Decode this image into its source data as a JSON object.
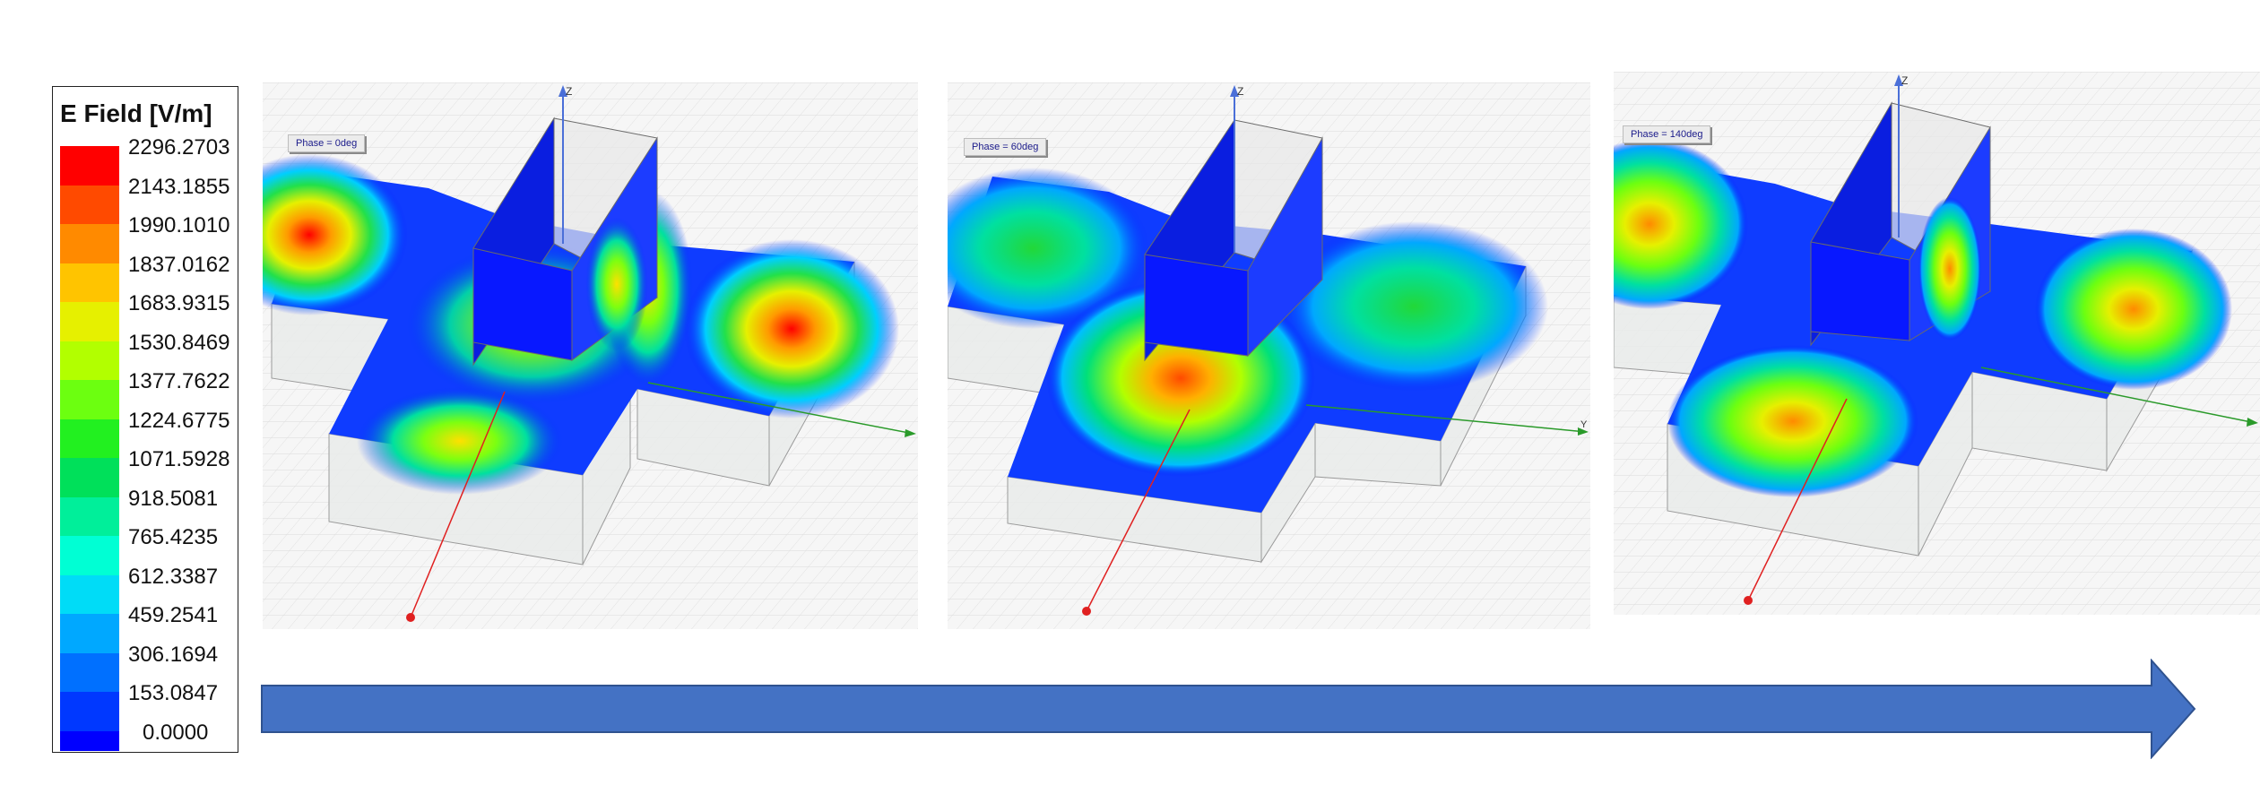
{
  "legend": {
    "title": "E Field [V/m]",
    "values": [
      "2296.2703",
      "2143.1855",
      "1990.1010",
      "1837.0162",
      "1683.9315",
      "1530.8469",
      "1377.7622",
      "1224.6775",
      "1071.5928",
      "918.5081",
      "765.4235",
      "612.3387",
      "459.2541",
      "306.1694",
      "153.0847",
      "0.0000"
    ],
    "colors": [
      "#ff0000",
      "#ff4a00",
      "#ff8a00",
      "#ffc400",
      "#e6f000",
      "#b2ff00",
      "#6cff10",
      "#22f020",
      "#00e05a",
      "#00ef9a",
      "#00ffd4",
      "#00dcf7",
      "#00a8ff",
      "#0070ff",
      "#0038ff",
      "#0000ff"
    ]
  },
  "panels": [
    {
      "phase": "Phase = 0deg"
    },
    {
      "phase": "Phase = 60deg"
    },
    {
      "phase": "Phase = 140deg"
    }
  ],
  "axis_labels": {
    "z": "Z",
    "y": "Y"
  },
  "arrow_color": "#4472c4"
}
